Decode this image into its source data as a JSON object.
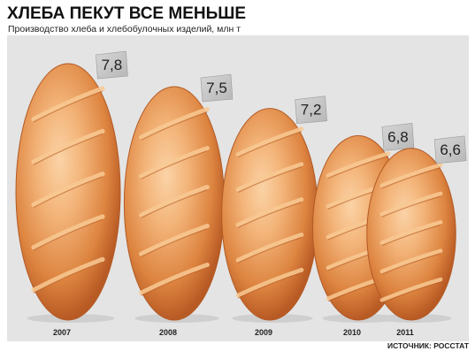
{
  "title": "ХЛЕБА ПЕКУТ ВСЕ МЕНЬШЕ",
  "subtitle": "Производство хлеба и хлебобулочных изделий, млн т",
  "source": "ИСТОЧНИК: РОССТАТ",
  "colors": {
    "background_panel": "#e4e4e4",
    "tag": "#c7c7c7",
    "crust_light": "#f3b479",
    "crust_dark": "#c7622a"
  },
  "chart_data": {
    "type": "bar",
    "title": "ХЛЕБА ПЕКУТ ВСЕ МЕНЬШЕ",
    "subtitle": "Производство хлеба и хлебобулочных изделий, млн т",
    "categories": [
      "2007",
      "2008",
      "2009",
      "2010",
      "2011"
    ],
    "values": [
      7.8,
      7.5,
      7.2,
      6.8,
      6.6
    ],
    "value_labels": [
      "7,8",
      "7,5",
      "7,2",
      "6,8",
      "6,6"
    ],
    "marks": "bread-loaves",
    "grid": false,
    "legend": "none"
  }
}
